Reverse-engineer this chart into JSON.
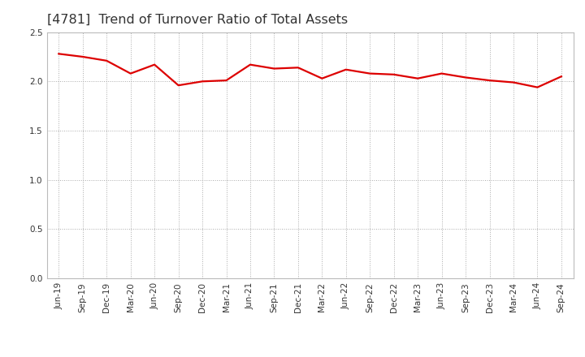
{
  "title": "[4781]  Trend of Turnover Ratio of Total Assets",
  "x_labels": [
    "Jun-19",
    "Sep-19",
    "Dec-19",
    "Mar-20",
    "Jun-20",
    "Sep-20",
    "Dec-20",
    "Mar-21",
    "Jun-21",
    "Sep-21",
    "Dec-21",
    "Mar-22",
    "Jun-22",
    "Sep-22",
    "Dec-22",
    "Mar-23",
    "Jun-23",
    "Sep-23",
    "Dec-23",
    "Mar-24",
    "Jun-24",
    "Sep-24"
  ],
  "y_values": [
    2.28,
    2.25,
    2.21,
    2.08,
    2.17,
    1.96,
    2.0,
    2.01,
    2.17,
    2.13,
    2.14,
    2.03,
    2.12,
    2.08,
    2.07,
    2.03,
    2.08,
    2.04,
    2.01,
    1.99,
    1.94,
    2.05
  ],
  "ylim": [
    0.0,
    2.5
  ],
  "yticks": [
    0.0,
    0.5,
    1.0,
    1.5,
    2.0,
    2.5
  ],
  "line_color": "#dd0000",
  "line_width": 1.6,
  "background_color": "#ffffff",
  "grid_color": "#aaaaaa",
  "title_color": "#333333",
  "title_fontsize": 11.5,
  "tick_fontsize": 7.5
}
